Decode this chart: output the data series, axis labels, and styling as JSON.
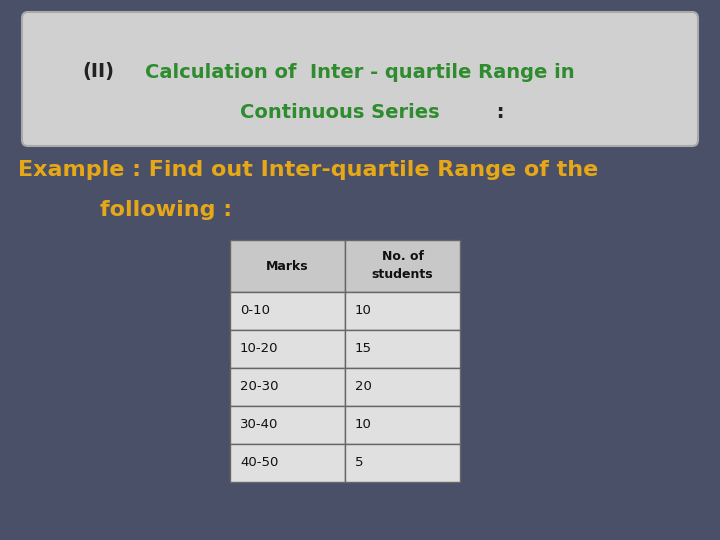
{
  "bg_color": "#4a5068",
  "title_box_color": "#d0d0d0",
  "title_green_color": "#2e8b2e",
  "title_dark_color": "#222222",
  "example_text_color": "#e6a817",
  "table_header": [
    "Marks",
    "No. of\nstudents"
  ],
  "table_data": [
    [
      "0-10",
      "10"
    ],
    [
      "10-20",
      "15"
    ],
    [
      "20-30",
      "20"
    ],
    [
      "30-40",
      "10"
    ],
    [
      "40-50",
      "5"
    ]
  ],
  "table_bg_color": "#e0e0e0",
  "table_header_bg": "#c8c8c8",
  "table_text_color": "#111111",
  "table_border_color": "#666666",
  "figsize": [
    7.2,
    5.4
  ],
  "dpi": 100
}
